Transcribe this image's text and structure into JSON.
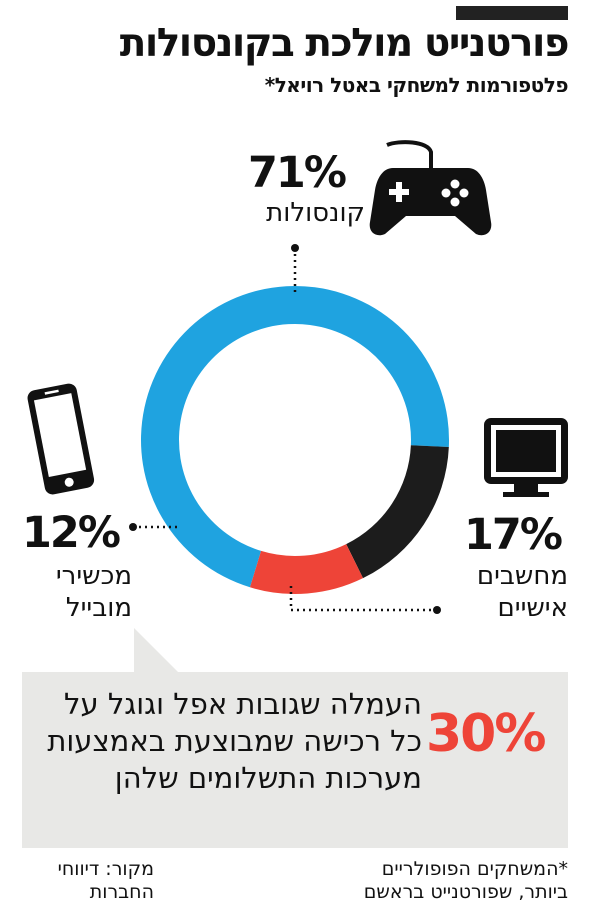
{
  "title": "פורטנייט מולכת בקונסולות",
  "subtitle": "פלטפורמות למשחקי באטל רויאל*",
  "chart_data": {
    "type": "pie",
    "donut": true,
    "slices": [
      {
        "label": "קונסולות",
        "value": 71,
        "display": "71%",
        "color": "#1fa3e0"
      },
      {
        "label": "מחשבים אישיים",
        "value": 17,
        "display": "17%",
        "color": "#1c1c1c"
      },
      {
        "label": "מכשירי מובייל",
        "value": 12,
        "display": "12%",
        "color": "#ee4438"
      }
    ],
    "labels": {
      "consoles": {
        "pct": "71%",
        "lines": [
          "קונסולות"
        ]
      },
      "pc": {
        "pct": "17%",
        "lines": [
          "מחשבים",
          "אישיים"
        ]
      },
      "mobile": {
        "pct": "12%",
        "lines": [
          "מכשירי",
          "מובייל"
        ]
      }
    }
  },
  "icons": [
    "gamepad-icon",
    "monitor-icon",
    "smartphone-icon"
  ],
  "callout": {
    "pct": "30%",
    "text": "העמלה שגובות אפל וגוגל על כל רכישה שמבוצעת באמצעות מערכות התשלומים שלהן"
  },
  "footer": {
    "note_line1": "*המשחקים הפופולריים",
    "note_line2": "ביותר, שפורטנייט בראשם",
    "source_line1": "מקור: דיווחי",
    "source_line2": "החברות"
  }
}
